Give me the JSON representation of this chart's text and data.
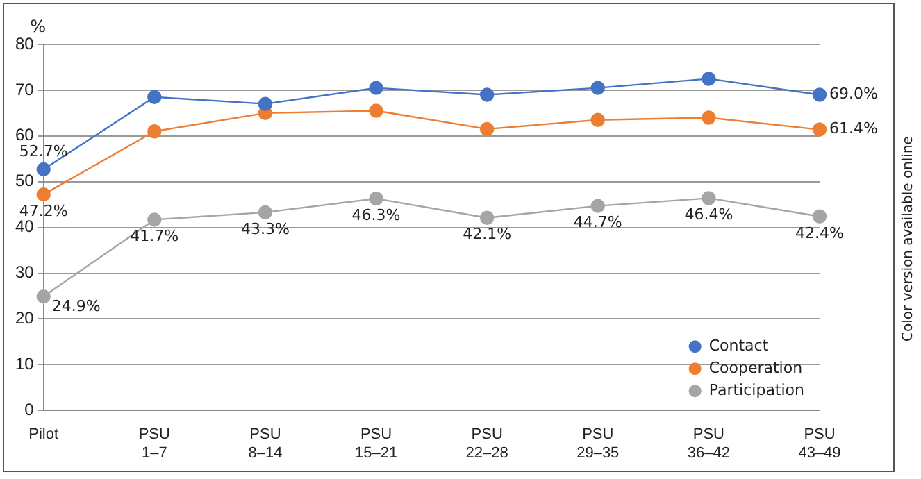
{
  "chart_data": {
    "type": "line",
    "ylabel": "%",
    "categories": [
      "Pilot",
      "PSU 1–7",
      "PSU 8–14",
      "PSU 15–21",
      "PSU 22–28",
      "PSU 29–35",
      "PSU 36–42",
      "PSU 43–49"
    ],
    "series": [
      {
        "name": "Contact",
        "color": "#4472c4",
        "values": [
          52.7,
          68.5,
          67,
          70.5,
          69,
          70.5,
          72.5,
          69.0
        ],
        "value_labels": [
          "52.7%",
          null,
          null,
          null,
          null,
          null,
          null,
          "69.0%"
        ]
      },
      {
        "name": "Cooperation",
        "color": "#ed7d31",
        "values": [
          47.2,
          61,
          65,
          65.5,
          61.5,
          63.5,
          64,
          61.4
        ],
        "value_labels": [
          "47.2%",
          null,
          null,
          null,
          null,
          null,
          null,
          "61.4%"
        ]
      },
      {
        "name": "Participation",
        "color": "#a5a5a5",
        "values": [
          24.9,
          41.7,
          43.3,
          46.3,
          42.1,
          44.7,
          46.4,
          42.4
        ],
        "value_labels": [
          "24.9%",
          "41.7%",
          "43.3%",
          "46.3%",
          "42.1%",
          "44.7%",
          "46.4%",
          "42.4%"
        ]
      }
    ],
    "ylim": [
      0,
      80
    ],
    "yticks": [
      0,
      10,
      20,
      30,
      40,
      50,
      60,
      70,
      80
    ],
    "grid": "y",
    "legend": "bottom right",
    "marker": "circle",
    "line_style": "solid",
    "annotations": [
      "Color version available online"
    ]
  }
}
